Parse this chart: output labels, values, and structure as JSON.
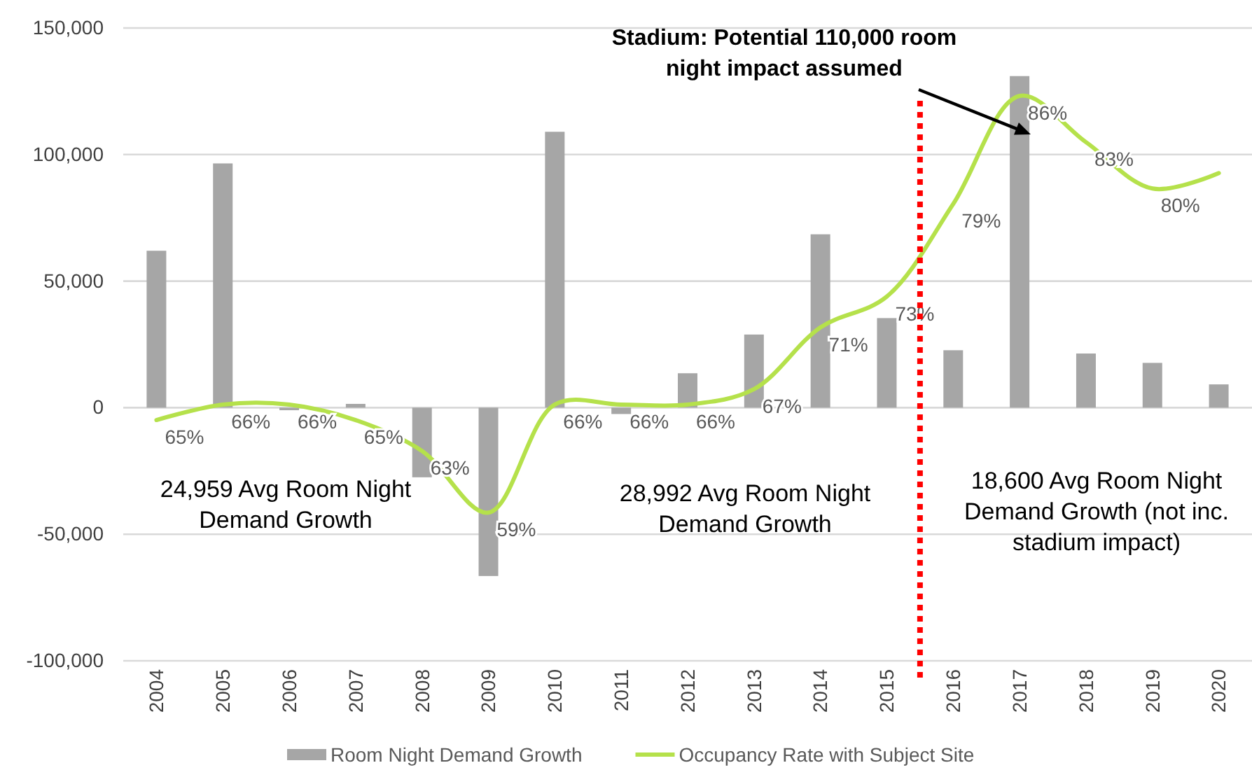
{
  "chart_data": {
    "type": "bar",
    "x": [
      2004,
      2005,
      2006,
      2007,
      2008,
      2009,
      2010,
      2011,
      2012,
      2013,
      2014,
      2015,
      2016,
      2017,
      2018,
      2019,
      2020
    ],
    "xlim": [
      2003.5,
      2020.5
    ],
    "xticks": [
      2004,
      2005,
      2006,
      2007,
      2008,
      2009,
      2010,
      2011,
      2012,
      2013,
      2014,
      2015,
      2016,
      2017,
      2018,
      2019,
      2020
    ],
    "ylim": [
      -100000,
      150000
    ],
    "yticks": [
      {
        "value": -100000,
        "label": "-100,000"
      },
      {
        "value": -50000,
        "label": "-50,000"
      },
      {
        "value": 0,
        "label": "0"
      },
      {
        "value": 50000,
        "label": "50,000"
      },
      {
        "value": 100000,
        "label": "100,000"
      },
      {
        "value": 150000,
        "label": "150,000"
      }
    ],
    "y2lim": [
      49.4,
      90.4
    ],
    "grid": "y",
    "legend": "bottom",
    "series": [
      {
        "name": "Room Night Demand Growth",
        "color": "#a6a6a6",
        "values": [
          62000,
          96500,
          -1000,
          1500,
          -27500,
          -66500,
          109000,
          -2500,
          13600,
          28900,
          68500,
          35400,
          22700,
          131000,
          21400,
          17700,
          9200
        ]
      },
      {
        "name": "Occupancy Rate with Subject Site",
        "type": "line",
        "axis": "y2",
        "color": "#b5e14b",
        "line_style": "solid",
        "marker": "none",
        "values": [
          65,
          66,
          66,
          65,
          63,
          59,
          66,
          66,
          66,
          67,
          71,
          73,
          79,
          86,
          83,
          80,
          81
        ],
        "value_labels": [
          "65%",
          "66%",
          "66%",
          "65%",
          "63%",
          "59%",
          "66%",
          "66%",
          "66%",
          "67%",
          "71%",
          "73%",
          "79%",
          "86%",
          "83%",
          "80%",
          null
        ]
      }
    ],
    "ref_lines": [
      {
        "axis": "x",
        "value": 2015.5,
        "color": "#ff0000",
        "line_style": "dotted"
      }
    ],
    "annotations": [
      "24,959 Avg Room Night Demand Growth",
      "28,992 Avg Room Night Demand Growth",
      "18,600 Avg Room Night Demand Growth (not inc. stadium impact)",
      "Stadium:  Potential 110,000 room night impact assumed"
    ]
  }
}
